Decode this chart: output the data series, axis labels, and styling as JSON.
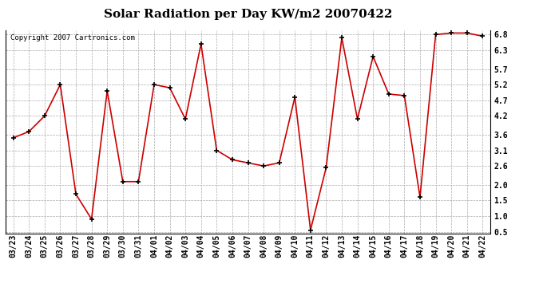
{
  "title": "Solar Radiation per Day KW/m2 20070422",
  "copyright": "Copyright 2007 Cartronics.com",
  "dates": [
    "03/23",
    "03/24",
    "03/25",
    "03/26",
    "03/27",
    "03/28",
    "03/29",
    "03/30",
    "03/31",
    "04/01",
    "04/02",
    "04/03",
    "04/04",
    "04/05",
    "04/06",
    "04/07",
    "04/08",
    "04/09",
    "04/10",
    "04/11",
    "04/12",
    "04/13",
    "04/14",
    "04/15",
    "04/16",
    "04/17",
    "04/18",
    "04/19",
    "04/20",
    "04/21",
    "04/22"
  ],
  "values": [
    3.5,
    3.7,
    4.2,
    5.2,
    1.7,
    0.9,
    5.0,
    2.1,
    2.1,
    5.2,
    5.1,
    4.1,
    6.5,
    3.1,
    2.8,
    2.7,
    2.6,
    2.7,
    4.8,
    0.55,
    2.55,
    6.7,
    4.1,
    6.1,
    4.9,
    4.85,
    1.6,
    6.8,
    6.85,
    6.85,
    6.75
  ],
  "line_color": "#cc0000",
  "marker_color": "#000000",
  "bg_color": "#ffffff",
  "grid_color": "#aaaaaa",
  "ylim_min": 0.45,
  "ylim_max": 6.95,
  "yticks": [
    0.5,
    1.0,
    1.5,
    2.0,
    2.6,
    3.1,
    3.6,
    4.2,
    4.7,
    5.2,
    5.7,
    6.3,
    6.8
  ],
  "title_fontsize": 11,
  "tick_fontsize": 7,
  "copyright_fontsize": 6.5
}
